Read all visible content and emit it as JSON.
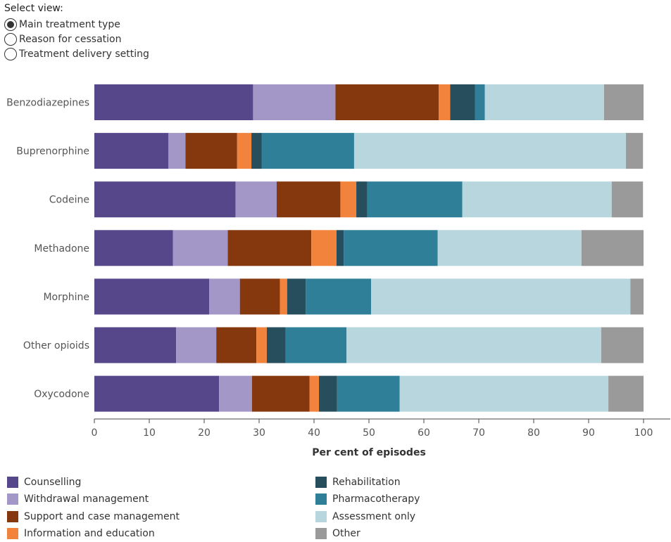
{
  "view_selector": {
    "title": "Select view:",
    "options": [
      {
        "label": "Main treatment type",
        "selected": true
      },
      {
        "label": "Reason for cessation",
        "selected": false
      },
      {
        "label": "Treatment delivery setting",
        "selected": false
      }
    ]
  },
  "colors": {
    "Counselling": "#56478a",
    "Withdrawal management": "#a397c8",
    "Support and case management": "#85370e",
    "Information and education": "#f2833d",
    "Rehabilitation": "#264e5d",
    "Pharmacotherapy": "#2f7f99",
    "Assessment only": "#b7d6de",
    "Other": "#9a9a9a"
  },
  "chart_data": {
    "type": "bar",
    "orientation": "horizontal",
    "stacked": true,
    "xlabel": "Per cent of episodes",
    "ylabel": "",
    "xlim": [
      0,
      100
    ],
    "xticks": [
      0,
      10,
      20,
      30,
      40,
      50,
      60,
      70,
      80,
      90,
      100
    ],
    "grid": false,
    "legend_position": "bottom",
    "categories": [
      "Benzodiazepines",
      "Buprenorphine",
      "Codeine",
      "Methadone",
      "Morphine",
      "Other opioids",
      "Oxycodone"
    ],
    "series": [
      {
        "name": "Counselling",
        "values": [
          28.9,
          13.5,
          25.7,
          14.3,
          20.9,
          14.9,
          22.7
        ]
      },
      {
        "name": "Withdrawal management",
        "values": [
          15.0,
          3.1,
          7.5,
          10.0,
          5.6,
          7.3,
          6.0
        ]
      },
      {
        "name": "Support and case management",
        "values": [
          18.8,
          9.4,
          11.6,
          15.2,
          7.3,
          7.3,
          10.5
        ]
      },
      {
        "name": "Information and education",
        "values": [
          2.1,
          2.6,
          2.9,
          4.6,
          1.3,
          1.9,
          1.7
        ]
      },
      {
        "name": "Rehabilitation",
        "values": [
          4.5,
          1.9,
          2.0,
          1.3,
          3.4,
          3.4,
          3.3
        ]
      },
      {
        "name": "Pharmacotherapy",
        "values": [
          1.8,
          16.8,
          17.3,
          17.1,
          11.9,
          11.1,
          11.4
        ]
      },
      {
        "name": "Assessment only",
        "values": [
          21.7,
          49.5,
          27.2,
          26.2,
          47.2,
          46.4,
          38.0
        ]
      },
      {
        "name": "Other",
        "values": [
          7.2,
          3.1,
          5.7,
          11.3,
          2.4,
          7.7,
          6.4
        ]
      }
    ]
  }
}
